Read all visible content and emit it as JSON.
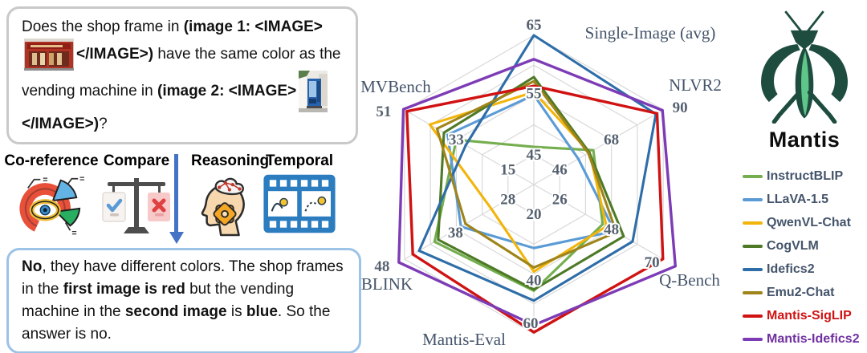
{
  "question_box": {
    "seg1": [
      {
        "t": "Does the shop frame in ",
        "b": false
      },
      {
        "t": "(image 1: <IMAGE>",
        "b": true
      }
    ],
    "seg2": [
      {
        "t": "</IMAGE>)",
        "b": true
      },
      {
        "t": " have the same color as the vending machine in ",
        "b": false
      },
      {
        "t": "(image 2: <IMAGE>",
        "b": true
      }
    ],
    "seg3": [
      {
        "t": "</IMAGE>)",
        "b": true
      },
      {
        "t": "?",
        "b": false
      }
    ]
  },
  "categories": [
    {
      "label": "Co-reference"
    },
    {
      "label": "Compare"
    },
    {
      "label": "Reasoning"
    },
    {
      "label": "Temporal"
    }
  ],
  "answer_box": {
    "segments": [
      {
        "t": "No",
        "b": true
      },
      {
        "t": ", they have different colors. The shop frames in the ",
        "b": false
      },
      {
        "t": "first image is red",
        "b": true
      },
      {
        "t": " but the vending machine in the ",
        "b": false
      },
      {
        "t": "second image",
        "b": true
      },
      {
        "t": " is ",
        "b": false
      },
      {
        "t": "blue",
        "b": true
      },
      {
        "t": ". So the answer is no.",
        "b": false
      }
    ]
  },
  "brand": {
    "name": "Mantis",
    "logo_dark": "#1e4d40",
    "logo_light": "#5fc689"
  },
  "colors": {
    "grid": "#d9d9d9",
    "tick_text": "#566170",
    "axis_title": "#44546a",
    "arrow": "#4472c4",
    "question_border": "#c9c9c9",
    "answer_border": "#9dc3e6"
  },
  "chart_data": {
    "type": "radar",
    "grid": "on",
    "rings": 5,
    "legend_position": "right",
    "axes": [
      {
        "label": "Single-Image (avg)",
        "axis_min": 40,
        "axis_max": 65,
        "ticks": [
          45,
          55,
          65
        ]
      },
      {
        "label": "NLVR2",
        "axis_min": 35,
        "axis_max": 90,
        "ticks": [
          46,
          68,
          90
        ]
      },
      {
        "label": "Q-Bench",
        "axis_min": 15,
        "axis_max": 70,
        "ticks": [
          26,
          48,
          70
        ]
      },
      {
        "label": "Mantis-Eval",
        "axis_min": 10,
        "axis_max": 60,
        "ticks": [
          20,
          40,
          60
        ]
      },
      {
        "label": "BLINK",
        "axis_min": 23,
        "axis_max": 48,
        "ticks": [
          28,
          38,
          48
        ]
      },
      {
        "label": "MVBench",
        "axis_min": 6,
        "axis_max": 51,
        "ticks": [
          15,
          33,
          51
        ]
      }
    ],
    "series": [
      {
        "name": "InstructBLIP",
        "color": "#74ae4e",
        "label_color": "#44546a",
        "width": 3.1,
        "values": [
          46.3,
          60.3,
          44.3,
          45.6,
          42.2,
          33.0
        ]
      },
      {
        "name": "LLaVA-1.5",
        "color": "#5b9bd5",
        "label_color": "#44546a",
        "width": 3.1,
        "values": [
          55.0,
          53.9,
          49.3,
          31.3,
          37.1,
          36.0
        ]
      },
      {
        "name": "QwenVL-Chat",
        "color": "#f2b50c",
        "label_color": "#44546a",
        "width": 3.1,
        "values": [
          55.5,
          58.7,
          45.9,
          39.2,
          31.2,
          42.2
        ]
      },
      {
        "name": "CogVLM",
        "color": "#4e7a27",
        "label_color": "#44546a",
        "width": 3.1,
        "values": [
          58.0,
          58.6,
          53.2,
          45.2,
          41.5,
          37.3
        ]
      },
      {
        "name": "Idefics2",
        "color": "#2e6da8",
        "label_color": "#44546a",
        "width": 3.1,
        "values": [
          65.0,
          86.9,
          57.0,
          48.9,
          45.2,
          29.7
        ]
      },
      {
        "name": "Emu2-Chat",
        "color": "#9e8419",
        "label_color": "#44546a",
        "width": 3.1,
        "values": [
          57.3,
          58.2,
          50.1,
          37.8,
          36.2,
          39.7
        ]
      },
      {
        "name": "Mantis-SigLIP",
        "color": "#d01212",
        "label_color": "#d01212",
        "width": 3.4,
        "values": [
          56.5,
          87.4,
          69.9,
          59.5,
          46.4,
          50.2
        ]
      },
      {
        "name": "Mantis-Idefics2",
        "color": "#7d3cb5",
        "label_color": "#7030a0",
        "width": 3.4,
        "values": [
          61.0,
          89.7,
          75.2,
          57.1,
          49.1,
          51.4
        ]
      }
    ]
  }
}
